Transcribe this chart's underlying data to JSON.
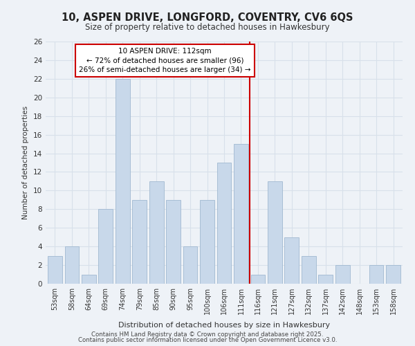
{
  "title": "10, ASPEN DRIVE, LONGFORD, COVENTRY, CV6 6QS",
  "subtitle": "Size of property relative to detached houses in Hawkesbury",
  "xlabel": "Distribution of detached houses by size in Hawkesbury",
  "ylabel": "Number of detached properties",
  "categories": [
    "53sqm",
    "58sqm",
    "64sqm",
    "69sqm",
    "74sqm",
    "79sqm",
    "85sqm",
    "90sqm",
    "95sqm",
    "100sqm",
    "106sqm",
    "111sqm",
    "116sqm",
    "121sqm",
    "127sqm",
    "132sqm",
    "137sqm",
    "142sqm",
    "148sqm",
    "153sqm",
    "158sqm"
  ],
  "values": [
    3,
    4,
    1,
    8,
    22,
    9,
    11,
    9,
    4,
    9,
    13,
    15,
    1,
    11,
    5,
    3,
    1,
    2,
    0,
    2,
    2
  ],
  "bar_color": "#c8d8ea",
  "vline_index": 11.5,
  "annotation_title": "10 ASPEN DRIVE: 112sqm",
  "annotation_line1": "← 72% of detached houses are smaller (96)",
  "annotation_line2": "26% of semi-detached houses are larger (34) →",
  "vline_color": "#cc0000",
  "annotation_box_edgecolor": "#cc0000",
  "footer1": "Contains HM Land Registry data © Crown copyright and database right 2025.",
  "footer2": "Contains public sector information licensed under the Open Government Licence v3.0.",
  "ylim": [
    0,
    26
  ],
  "yticks": [
    0,
    2,
    4,
    6,
    8,
    10,
    12,
    14,
    16,
    18,
    20,
    22,
    24,
    26
  ],
  "background_color": "#eef2f7",
  "grid_color": "#d8e0ea"
}
